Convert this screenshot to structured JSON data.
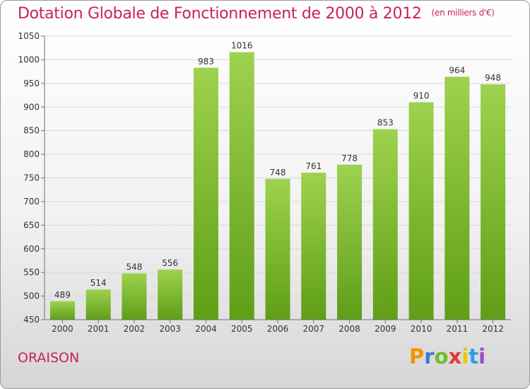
{
  "title": "Dotation Globale de Fonctionnement de 2000 à 2012",
  "subtitle": "(en milliers d'€)",
  "commune": "ORAISON",
  "logo": {
    "letters": [
      "P",
      "r",
      "o",
      "x",
      "i",
      "t",
      "i"
    ],
    "colors": [
      "#f29400",
      "#3a7bd5",
      "#6cbf2c",
      "#e53935",
      "#f2c300",
      "#2f9ee0",
      "#9b4dca"
    ]
  },
  "colors": {
    "title": "#c8225a",
    "bar_light": "#9ed24f",
    "bar_dark": "#5f9e16",
    "grid": "#d9d9d9",
    "axis": "#6e6e6e"
  },
  "chart_data": {
    "type": "bar",
    "title": "Dotation Globale de Fonctionnement de 2000 à 2012",
    "categories": [
      "2000",
      "2001",
      "2002",
      "2003",
      "2004",
      "2005",
      "2006",
      "2007",
      "2008",
      "2009",
      "2010",
      "2011",
      "2012"
    ],
    "values": [
      489,
      514,
      548,
      556,
      983,
      1016,
      748,
      761,
      778,
      853,
      910,
      964,
      948
    ],
    "data_labels": [
      "489",
      "514",
      "548",
      "556",
      "983",
      "1016",
      "748",
      "761",
      "778",
      "853",
      "910",
      "964",
      "948"
    ],
    "ylim": [
      450,
      1050
    ],
    "yticks": [
      "450",
      "500",
      "550",
      "600",
      "650",
      "700",
      "750",
      "800",
      "850",
      "900",
      "950",
      "1000",
      "1050"
    ],
    "grid": true,
    "legend": "none",
    "xlabel": "",
    "ylabel": ""
  }
}
